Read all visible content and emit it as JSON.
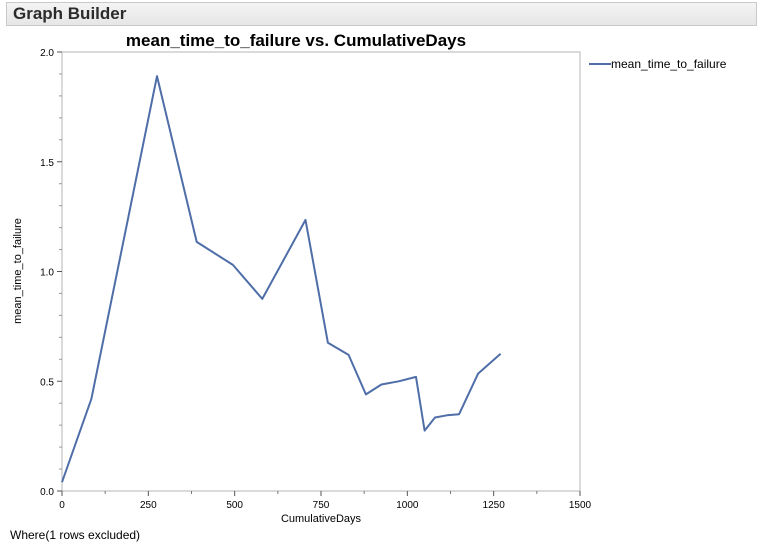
{
  "window": {
    "title": "Graph Builder"
  },
  "chart_data": {
    "type": "line",
    "title": "mean_time_to_failure vs. CumulativeDays",
    "xlabel": "CumulativeDays",
    "ylabel": "mean_time_to_failure",
    "xlim": [
      0,
      1500
    ],
    "ylim": [
      0,
      2.0
    ],
    "xticks": [
      "0",
      "250",
      "500",
      "750",
      "1000",
      "1250",
      "1500"
    ],
    "yticks": [
      "0.0",
      "0.5",
      "1.0",
      "1.5",
      "2.0"
    ],
    "legend": {
      "position": "right",
      "entries": [
        "mean_time_to_failure"
      ]
    },
    "grid": false,
    "series": [
      {
        "name": "mean_time_to_failure",
        "color": "#4f6ea8",
        "x": [
          0,
          85,
          275,
          390,
          495,
          580,
          705,
          770,
          830,
          880,
          925,
          975,
          1025,
          1050,
          1080,
          1115,
          1150,
          1205,
          1270
        ],
        "y": [
          0.04,
          0.42,
          1.89,
          1.135,
          1.03,
          0.875,
          1.235,
          0.675,
          0.62,
          0.44,
          0.485,
          0.5,
          0.52,
          0.275,
          0.335,
          0.345,
          0.35,
          0.535,
          0.625
        ]
      }
    ]
  },
  "footer": {
    "text": "Where(1 rows excluded)"
  }
}
